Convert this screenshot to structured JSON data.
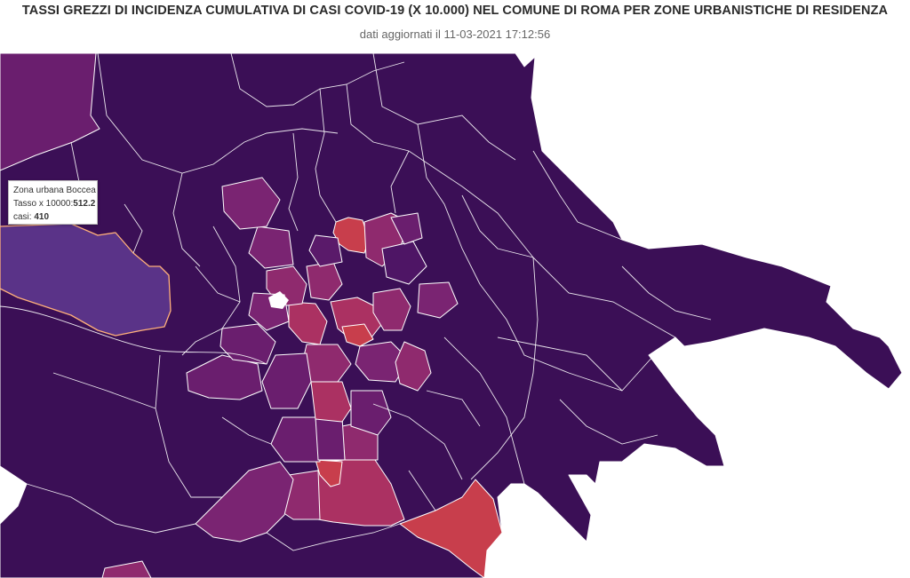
{
  "header": {
    "title": "TASSI GREZZI DI INCIDENZA CUMULATIVA DI CASI COVID-19 (X 10.000) NEL COMUNE DI ROMA PER ZONE URBANISTICHE DI RESIDENZA",
    "subtitle": "dati aggiornati il 11-03-2021 17:12:56"
  },
  "tooltip": {
    "zone_name": "Zona urbana Boccea",
    "rate_label": "Tasso x 10000:",
    "rate_value": "512.2",
    "cases_label": "casi:",
    "cases_value": "410"
  },
  "palette": {
    "base": "#3b0f56",
    "low": "#4e1565",
    "mid": "#6a1e6e",
    "midhigh": "#8f2a6e",
    "high": "#ab3162",
    "veryhigh": "#c83e4c",
    "selected": "#5a3388"
  }
}
